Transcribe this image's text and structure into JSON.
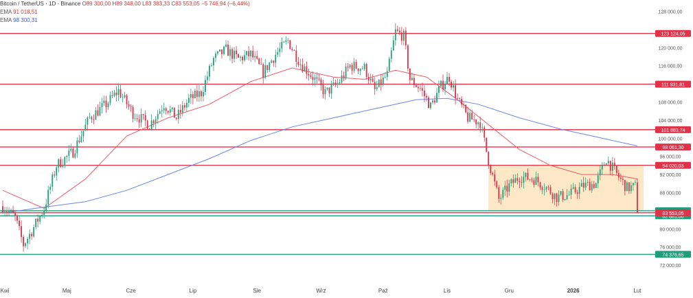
{
  "legend": {
    "symbol": "Bitcoin / TetherUS · 1D · Binance",
    "o_label": "O",
    "o_value": "89 300,00",
    "h_label": "H",
    "h_value": "89 348,00",
    "l_label": "L",
    "l_value": "83 383,33",
    "c_label": "C",
    "c_value": "83 553,05",
    "change": "−5 746,94 (−6,44%)",
    "ema50_label": "EMA",
    "ema50_value": "91 018,51",
    "ema200_label": "EMA",
    "ema200_value": "98 300,31"
  },
  "chart_data": {
    "type": "candlestick",
    "ylim": [
      70500,
      130200
    ],
    "y_ticks": [
      {
        "value": 128000,
        "label": "128 000,00"
      },
      {
        "value": 120000,
        "label": "120 000,00"
      },
      {
        "value": 116000,
        "label": "116 000,00"
      },
      {
        "value": 108000,
        "label": "108 000,00"
      },
      {
        "value": 104000,
        "label": "104 000,00"
      },
      {
        "value": 100000,
        "label": "100 000,00"
      },
      {
        "value": 96000,
        "label": "96 000,00"
      },
      {
        "value": 92000,
        "label": "92 000,00"
      },
      {
        "value": 88000,
        "label": "88 000,00"
      },
      {
        "value": 80000,
        "label": "80 000,00"
      },
      {
        "value": 76000,
        "label": "76 000,00"
      },
      {
        "value": 72000,
        "label": "72 000,00"
      }
    ],
    "x_ticks": [
      {
        "day": 1,
        "label": "Kwi"
      },
      {
        "day": 31,
        "label": "Maj"
      },
      {
        "day": 62,
        "label": "Cze"
      },
      {
        "day": 92,
        "label": "Lip"
      },
      {
        "day": 123,
        "label": "Sie"
      },
      {
        "day": 154,
        "label": "Wrz"
      },
      {
        "day": 184,
        "label": "Paź"
      },
      {
        "day": 215,
        "label": "Lis"
      },
      {
        "day": 245,
        "label": "Gru"
      },
      {
        "day": 276,
        "label": "2026"
      },
      {
        "day": 307,
        "label": "Lut"
      }
    ],
    "x_range": [
      0,
      315
    ],
    "resistance_levels": [
      {
        "value": 123124.05,
        "label": "123 124,05",
        "color": "#e0334a"
      },
      {
        "value": 111931.81,
        "label": "111 931,81",
        "color": "#e0334a"
      },
      {
        "value": 101883.74,
        "label": "101 883,74",
        "color": "#e0334a"
      },
      {
        "value": 98061.3,
        "label": "98 061,30",
        "color": "#e0334a"
      },
      {
        "value": 94020.03,
        "label": "94 020,03",
        "color": "#e0334a"
      }
    ],
    "support_levels": [
      {
        "value": 84000,
        "label": "84 000,00",
        "color": "#1f9e7c"
      },
      {
        "value": 82881.06,
        "label": "82 881,06",
        "color": "#1f9e7c"
      },
      {
        "value": 74376.65,
        "label": "74 376,65",
        "color": "#1f9e7c"
      }
    ],
    "last_price": {
      "value": 83553.05,
      "label": "83 553,05",
      "color": "#e0334a"
    },
    "range_box": {
      "x0_day": 235,
      "x1_day": 310,
      "y_top": 94020.03,
      "y_bottom": 84000,
      "color": "#fbe3bd"
    },
    "series": [
      {
        "kind": "candles",
        "up_color": "#26a17b",
        "down_color": "#e0334a",
        "anchors": [
          {
            "day": 0,
            "value": 85000
          },
          {
            "day": 6,
            "value": 82500
          },
          {
            "day": 10,
            "value": 76500
          },
          {
            "day": 14,
            "value": 79500
          },
          {
            "day": 20,
            "value": 84500
          },
          {
            "day": 26,
            "value": 94000
          },
          {
            "day": 34,
            "value": 97000
          },
          {
            "day": 42,
            "value": 104500
          },
          {
            "day": 50,
            "value": 107500
          },
          {
            "day": 56,
            "value": 110500
          },
          {
            "day": 63,
            "value": 105500
          },
          {
            "day": 71,
            "value": 103000
          },
          {
            "day": 78,
            "value": 107500
          },
          {
            "day": 84,
            "value": 104500
          },
          {
            "day": 90,
            "value": 108500
          },
          {
            "day": 96,
            "value": 110000
          },
          {
            "day": 102,
            "value": 117500
          },
          {
            "day": 108,
            "value": 119500
          },
          {
            "day": 114,
            "value": 117500
          },
          {
            "day": 120,
            "value": 118500
          },
          {
            "day": 126,
            "value": 114500
          },
          {
            "day": 132,
            "value": 118500
          },
          {
            "day": 138,
            "value": 121500
          },
          {
            "day": 144,
            "value": 116500
          },
          {
            "day": 150,
            "value": 113500
          },
          {
            "day": 156,
            "value": 110000
          },
          {
            "day": 162,
            "value": 112000
          },
          {
            "day": 168,
            "value": 116000
          },
          {
            "day": 175,
            "value": 115500
          },
          {
            "day": 180,
            "value": 110500
          },
          {
            "day": 186,
            "value": 114000
          },
          {
            "day": 190,
            "value": 123500
          },
          {
            "day": 194,
            "value": 122500
          },
          {
            "day": 197,
            "value": 113000
          },
          {
            "day": 202,
            "value": 111000
          },
          {
            "day": 207,
            "value": 107000
          },
          {
            "day": 212,
            "value": 111500
          },
          {
            "day": 216,
            "value": 113500
          },
          {
            "day": 220,
            "value": 108500
          },
          {
            "day": 225,
            "value": 104500
          },
          {
            "day": 231,
            "value": 103500
          },
          {
            "day": 235,
            "value": 95000
          },
          {
            "day": 240,
            "value": 86500
          },
          {
            "day": 245,
            "value": 89500
          },
          {
            "day": 250,
            "value": 91500
          },
          {
            "day": 257,
            "value": 91000
          },
          {
            "day": 262,
            "value": 89500
          },
          {
            "day": 268,
            "value": 87000
          },
          {
            "day": 274,
            "value": 87500
          },
          {
            "day": 281,
            "value": 89500
          },
          {
            "day": 287,
            "value": 90000
          },
          {
            "day": 292,
            "value": 95500
          },
          {
            "day": 297,
            "value": 92000
          },
          {
            "day": 302,
            "value": 89000
          },
          {
            "day": 306,
            "value": 89300
          },
          {
            "day": 307,
            "value": 83553.05
          }
        ]
      },
      {
        "kind": "line",
        "color": "#ec5b68",
        "points": [
          {
            "day": 0,
            "value": 88500
          },
          {
            "day": 20,
            "value": 84500
          },
          {
            "day": 40,
            "value": 91000
          },
          {
            "day": 60,
            "value": 100500
          },
          {
            "day": 80,
            "value": 104500
          },
          {
            "day": 100,
            "value": 107500
          },
          {
            "day": 120,
            "value": 112500
          },
          {
            "day": 140,
            "value": 115500
          },
          {
            "day": 160,
            "value": 113500
          },
          {
            "day": 175,
            "value": 113000
          },
          {
            "day": 190,
            "value": 115000
          },
          {
            "day": 205,
            "value": 113500
          },
          {
            "day": 220,
            "value": 108500
          },
          {
            "day": 235,
            "value": 103000
          },
          {
            "day": 250,
            "value": 97500
          },
          {
            "day": 265,
            "value": 94000
          },
          {
            "day": 280,
            "value": 92000
          },
          {
            "day": 295,
            "value": 92000
          },
          {
            "day": 307,
            "value": 91018.51
          }
        ]
      },
      {
        "kind": "line",
        "color": "#6b86e6",
        "points": [
          {
            "day": 0,
            "value": 83500
          },
          {
            "day": 20,
            "value": 84800
          },
          {
            "day": 40,
            "value": 86000
          },
          {
            "day": 60,
            "value": 88500
          },
          {
            "day": 80,
            "value": 92000
          },
          {
            "day": 100,
            "value": 95500
          },
          {
            "day": 120,
            "value": 99500
          },
          {
            "day": 140,
            "value": 102500
          },
          {
            "day": 160,
            "value": 104500
          },
          {
            "day": 180,
            "value": 106500
          },
          {
            "day": 200,
            "value": 108500
          },
          {
            "day": 215,
            "value": 108800
          },
          {
            "day": 230,
            "value": 107500
          },
          {
            "day": 250,
            "value": 104500
          },
          {
            "day": 270,
            "value": 102000
          },
          {
            "day": 290,
            "value": 100000
          },
          {
            "day": 307,
            "value": 98300.31
          }
        ]
      }
    ]
  }
}
